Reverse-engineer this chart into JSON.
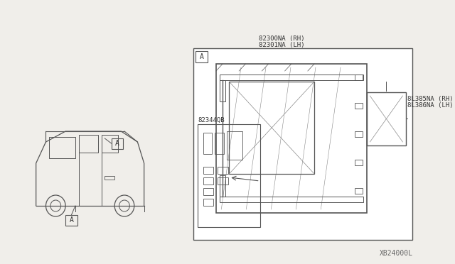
{
  "bg_color": "#f0eeea",
  "line_color": "#555555",
  "text_color": "#333333",
  "title_bottom": "XB24000L",
  "label_main_rh": "82300NA (RH)",
  "label_main_lh": "82301NA (LH)",
  "label_small_rh": "8L385NA (RH)",
  "label_small_lh": "8L386NA (LH)",
  "label_parts": "82344QB",
  "label_a": "A"
}
